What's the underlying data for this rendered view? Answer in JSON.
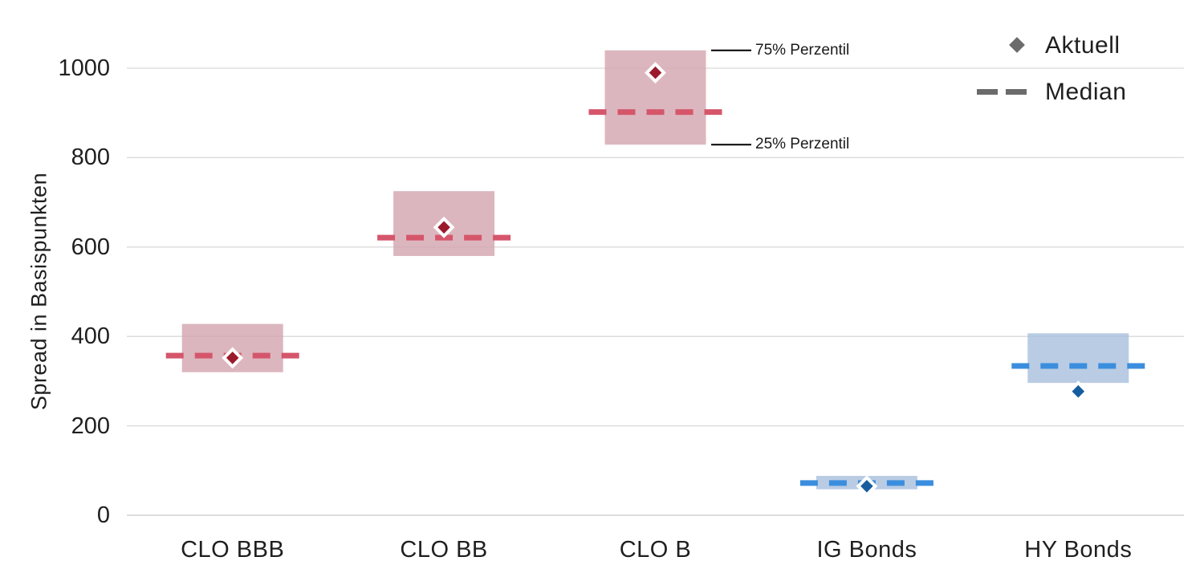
{
  "chart_data": {
    "type": "box",
    "title": "",
    "ylabel": "Spread in Basispunkten",
    "ylim": [
      0,
      1100
    ],
    "yticks": [
      0,
      200,
      400,
      600,
      800,
      1000
    ],
    "grid": true,
    "legend_position": "top-right",
    "categories": [
      "CLO BBB",
      "CLO BB",
      "CLO B",
      "IG Bonds",
      "HY Bonds"
    ],
    "series": [
      {
        "name": "CLO BBB",
        "p25": 320,
        "p75": 428,
        "median": 357,
        "aktuell": 352,
        "palette": "clo"
      },
      {
        "name": "CLO BB",
        "p25": 580,
        "p75": 725,
        "median": 621,
        "aktuell": 644,
        "palette": "clo"
      },
      {
        "name": "CLO B",
        "p25": 829,
        "p75": 1040,
        "median": 902,
        "aktuell": 990,
        "palette": "clo"
      },
      {
        "name": "IG Bonds",
        "p25": 58,
        "p75": 88,
        "median": 72,
        "aktuell": 65,
        "palette": "bonds"
      },
      {
        "name": "HY Bonds",
        "p25": 296,
        "p75": 407,
        "median": 334,
        "aktuell": 277,
        "palette": "bonds"
      }
    ],
    "palettes": {
      "clo": {
        "box": "#dcb6be",
        "median": "#d5566b",
        "marker": "#9b1b2d"
      },
      "bonds": {
        "box": "#b9cce4",
        "median": "#3b8ede",
        "marker": "#155d9e"
      }
    },
    "legend": [
      {
        "label": "Aktuell",
        "marker": "diamond-icon",
        "color": "#6b6b6b"
      },
      {
        "label": "Median",
        "marker": "dash-icon",
        "color": "#6b6b6b"
      }
    ],
    "annotations": [
      {
        "label": "75% Perzentil",
        "category": "CLO B",
        "value": 1040
      },
      {
        "label": "25% Perzentil",
        "category": "CLO B",
        "value": 829
      }
    ],
    "colors": {
      "grid": "#d9d9d9",
      "zero_line": "#c8c8c8",
      "text": "#1f1f1f",
      "annotation_line": "#000000"
    }
  }
}
